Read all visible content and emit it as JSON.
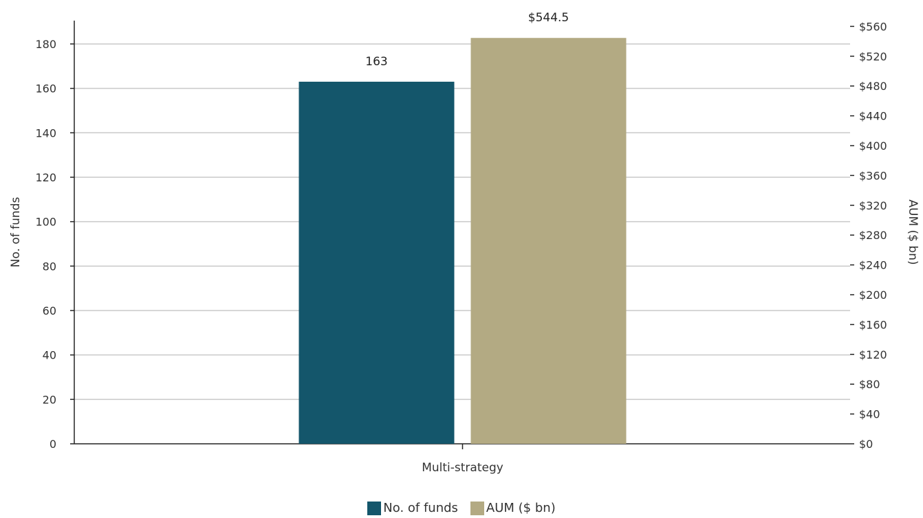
{
  "chart_data": {
    "type": "bar",
    "categories": [
      "Multi-strategy"
    ],
    "series": [
      {
        "name": "No. of funds",
        "axis": "left",
        "values": [
          163
        ],
        "color": "#14566b",
        "label": "163"
      },
      {
        "name": "AUM ($ bn)",
        "axis": "right",
        "values": [
          544.5
        ],
        "color": "#b3aa83",
        "label": "$544.5"
      }
    ],
    "ylabel_left": "No. of funds",
    "ylabel_right": "AUM ($ bn)",
    "ylim_left": [
      0,
      190
    ],
    "ylim_right": [
      0,
      570
    ],
    "yticks_left": [
      "0",
      "20",
      "40",
      "60",
      "80",
      "100",
      "120",
      "140",
      "160",
      "180"
    ],
    "yticks_right": [
      "$0",
      "$40",
      "$80",
      "$120",
      "$160",
      "$200",
      "$240",
      "$280",
      "$320",
      "$360",
      "$400",
      "$440",
      "$480",
      "$520",
      "$560"
    ],
    "grid": true,
    "legend_position": "bottom"
  }
}
